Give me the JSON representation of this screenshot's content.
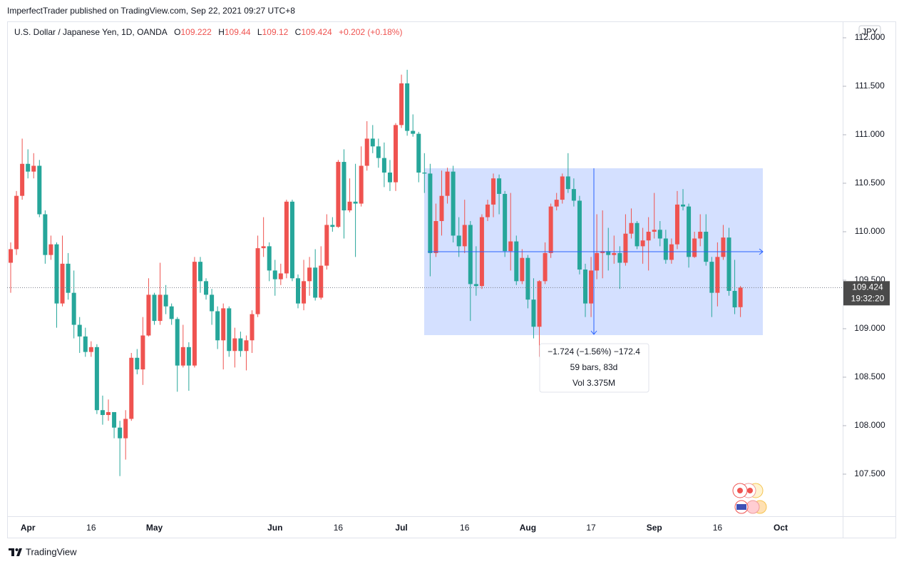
{
  "header": {
    "publisher": "ImperfectTrader published on TradingView.com, Sep 22, 2021 09:27 UTC+8"
  },
  "footer": {
    "brand": "TradingView"
  },
  "chart_data": {
    "type": "candlestick",
    "title": "U.S. Dollar / Japanese Yen, 1D, OANDA",
    "legend_labels": [
      "O",
      "H",
      "L",
      "C"
    ],
    "change_label": "+0.202 (+0.18%)",
    "currency": "JPY",
    "countdown": "19:32:20",
    "annotations": [
      "−1.724 (−1.56%) −172.4",
      "59 bars, 83d",
      "Vol 3.375M"
    ],
    "up_color": "#ef5350",
    "down_color": "#26a69a",
    "grid": false,
    "ylim": [
      107.066,
      112.169
    ],
    "yticks": [
      {
        "value": 107.5,
        "label": "107.500"
      },
      {
        "value": 108,
        "label": "108.000"
      },
      {
        "value": 108.5,
        "label": "108.500"
      },
      {
        "value": 109,
        "label": "109.000"
      },
      {
        "value": 109.5,
        "label": "109.500"
      },
      {
        "value": 110,
        "label": "110.000"
      },
      {
        "value": 110.5,
        "label": "110.500"
      },
      {
        "value": 111,
        "label": "111.000"
      },
      {
        "value": 111.5,
        "label": "111.500"
      },
      {
        "value": 112,
        "label": "112.000"
      }
    ],
    "categories": [
      null,
      null,
      null,
      "Apr",
      null,
      null,
      null,
      null,
      null,
      null,
      null,
      null,
      null,
      null,
      "16",
      null,
      null,
      null,
      null,
      null,
      null,
      null,
      null,
      null,
      null,
      "May",
      null,
      null,
      null,
      null,
      null,
      null,
      null,
      null,
      null,
      null,
      null,
      null,
      null,
      null,
      null,
      null,
      null,
      null,
      null,
      null,
      "Jun",
      null,
      null,
      null,
      null,
      null,
      null,
      null,
      null,
      null,
      null,
      "16",
      null,
      null,
      null,
      null,
      null,
      null,
      null,
      null,
      null,
      null,
      "Jul",
      null,
      null,
      null,
      null,
      null,
      null,
      null,
      null,
      null,
      null,
      "16",
      null,
      null,
      null,
      null,
      null,
      null,
      null,
      null,
      null,
      null,
      "Aug",
      null,
      null,
      null,
      null,
      null,
      null,
      null,
      null,
      null,
      null,
      "17",
      null,
      null,
      null,
      null,
      null,
      null,
      null,
      null,
      null,
      null,
      "Sep",
      null,
      null,
      null,
      null,
      null,
      null,
      null,
      null,
      null,
      null,
      "16",
      null,
      null,
      null,
      null,
      null,
      null,
      null,
      null,
      null,
      null,
      "Oct"
    ],
    "open": [
      109.68,
      109.82,
      110.37,
      110.7,
      110.62,
      110.68,
      110.18,
      109.76,
      109.87,
      109.26,
      109.67,
      109.37,
      109.04,
      108.92,
      108.76,
      108.81,
      108.16,
      108.11,
      108.14,
      107.98,
      107.87,
      108.07,
      108.7,
      108.58,
      108.93,
      109.35,
      109.08,
      109.35,
      109.23,
      109.1,
      108.62,
      108.81,
      108.62,
      109.69,
      109.49,
      109.35,
      109.18,
      108.88,
      109.21,
      108.77,
      108.9,
      108.77,
      108.88,
      109.15,
      109.83,
      109.85,
      109.6,
      109.51,
      109.57,
      110.31,
      109.52,
      109.26,
      109.49,
      109.63,
      109.32,
      109.65,
      110.07,
      110.05,
      110.72,
      110.22,
      110.31,
      110.29,
      110.68,
      110.96,
      110.88,
      110.76,
      110.61,
      110.51,
      111.1,
      111.53,
      111.04,
      111.01,
      110.61,
      110.6,
      109.78,
      110.11,
      110.37,
      110.62,
      109.96,
      109.85,
      110.07,
      109.46,
      109.44,
      110.15,
      110.28,
      110.55,
      110.39,
      109.8,
      109.9,
      109.49,
      109.73,
      109.3,
      109.02,
      109.49,
      109.78,
      110.26,
      110.33,
      110.57,
      110.44,
      110.32,
      109.61,
      109.26,
      109.6,
      109.78,
      109.8,
      109.76,
      109.78,
      109.68,
      109.98,
      110.09,
      109.85,
      109.91,
      110.0,
      110.02,
      109.93,
      109.71,
      109.87,
      110.28,
      110.26,
      109.74,
      109.93,
      110.0,
      109.69,
      109.37,
      109.74,
      109.94,
      109.39,
      109.222,
      null,
      null,
      null,
      null,
      null,
      null,
      null
    ],
    "high": [
      109.89,
      110.42,
      110.96,
      110.85,
      110.81,
      110.74,
      110.22,
      109.96,
      109.89,
      109.96,
      109.78,
      109.6,
      109.12,
      109.01,
      108.87,
      108.84,
      108.31,
      108.27,
      108.09,
      108.05,
      108.16,
      108.75,
      108.79,
      109.12,
      109.52,
      109.37,
      109.68,
      109.45,
      109.26,
      109.12,
      109.04,
      108.86,
      109.74,
      109.74,
      109.52,
      109.41,
      109.23,
      109.26,
      109.23,
      109.01,
      108.97,
      108.93,
      109.19,
      109.96,
      110.15,
      109.89,
      109.71,
      109.67,
      110.33,
      110.33,
      109.56,
      109.71,
      109.74,
      109.82,
      109.85,
      110.18,
      110.15,
      110.74,
      110.85,
      110.55,
      110.7,
      110.88,
      111.14,
      111.1,
      110.96,
      110.92,
      110.74,
      111.12,
      111.62,
      111.67,
      111.21,
      111.03,
      110.81,
      110.7,
      110.29,
      110.63,
      110.66,
      110.68,
      110.15,
      110.33,
      110.11,
      109.85,
      110.18,
      110.33,
      110.6,
      110.59,
      110.42,
      110.4,
      109.96,
      109.82,
      109.76,
      109.52,
      109.5,
      109.89,
      110.29,
      110.4,
      110.6,
      110.81,
      110.55,
      110.37,
      109.67,
      109.74,
      110.18,
      110.22,
      110.04,
      109.96,
      109.85,
      110.18,
      110.24,
      110.11,
      110.04,
      110.15,
      110.4,
      110.11,
      110.02,
      109.93,
      110.42,
      110.44,
      110.29,
      110.0,
      110.18,
      110.18,
      109.74,
      109.89,
      110.07,
      110.04,
      109.71,
      109.44,
      null,
      null,
      null,
      null,
      null,
      null,
      null
    ],
    "low": [
      109.37,
      109.76,
      110.33,
      110.55,
      110.55,
      110.15,
      109.67,
      109.71,
      109.01,
      109.23,
      109.3,
      108.9,
      108.75,
      108.71,
      108.71,
      108.12,
      108.01,
      108.05,
      107.87,
      107.48,
      107.65,
      108.05,
      108.53,
      108.42,
      108.92,
      109.04,
      109.04,
      109.15,
      109.04,
      108.35,
      108.6,
      108.36,
      108.6,
      109.37,
      109.3,
      109.04,
      108.79,
      108.58,
      108.71,
      108.6,
      108.71,
      108.57,
      108.75,
      109.12,
      109.74,
      109.49,
      109.34,
      109.45,
      109.52,
      109.49,
      109.21,
      109.19,
      109.34,
      109.29,
      109.3,
      109.61,
      110.0,
      110.04,
      109.93,
      110.2,
      109.74,
      110.26,
      110.63,
      110.81,
      110.66,
      110.46,
      110.42,
      110.42,
      111.07,
      110.99,
      110.98,
      110.51,
      110.4,
      109.54,
      109.74,
      109.96,
      110.29,
      109.89,
      109.74,
      109.78,
      109.08,
      109.34,
      109.41,
      110.11,
      110.15,
      110.18,
      109.74,
      109.6,
      109.45,
      109.46,
      109.21,
      108.9,
      108.71,
      109.46,
      109.73,
      110.22,
      110.29,
      110.4,
      110.26,
      109.56,
      109.12,
      109.12,
      109.51,
      109.52,
      109.6,
      109.67,
      109.41,
      109.65,
      109.93,
      109.82,
      109.67,
      109.6,
      109.93,
      109.85,
      109.67,
      109.67,
      109.82,
      110.22,
      109.63,
      109.73,
      109.85,
      109.65,
      109.12,
      109.23,
      109.71,
      109.34,
      109.15,
      109.12,
      null,
      null,
      null,
      null,
      null,
      null,
      null
    ],
    "close": [
      109.82,
      110.37,
      110.7,
      110.62,
      110.68,
      110.18,
      109.76,
      109.87,
      109.26,
      109.67,
      109.37,
      109.04,
      108.92,
      108.76,
      108.81,
      108.16,
      108.11,
      108.14,
      107.98,
      107.87,
      108.07,
      108.7,
      108.58,
      108.93,
      109.35,
      109.08,
      109.35,
      109.23,
      109.1,
      108.62,
      108.81,
      108.62,
      109.69,
      109.49,
      109.35,
      109.18,
      108.88,
      109.21,
      108.77,
      108.9,
      108.77,
      108.88,
      109.15,
      109.83,
      109.85,
      109.6,
      109.51,
      109.57,
      110.31,
      109.52,
      109.26,
      109.49,
      109.63,
      109.32,
      109.65,
      110.07,
      110.05,
      110.72,
      110.22,
      110.31,
      110.29,
      110.68,
      110.96,
      110.88,
      110.76,
      110.61,
      110.51,
      111.1,
      111.53,
      111.04,
      111.01,
      110.61,
      110.6,
      109.78,
      110.11,
      110.37,
      110.62,
      109.96,
      109.85,
      110.07,
      109.46,
      109.44,
      110.15,
      110.28,
      110.55,
      110.39,
      109.8,
      109.9,
      109.49,
      109.73,
      109.3,
      109.02,
      109.49,
      109.78,
      110.26,
      110.33,
      110.57,
      110.44,
      110.32,
      109.61,
      109.26,
      109.6,
      109.78,
      109.8,
      109.76,
      109.78,
      109.68,
      109.98,
      110.09,
      109.85,
      109.91,
      110.0,
      110.02,
      109.93,
      109.71,
      109.87,
      110.28,
      110.26,
      109.74,
      109.93,
      110.0,
      109.69,
      109.37,
      109.74,
      109.94,
      109.39,
      109.22,
      109.424,
      null,
      null,
      null,
      null,
      null,
      null,
      null
    ]
  }
}
